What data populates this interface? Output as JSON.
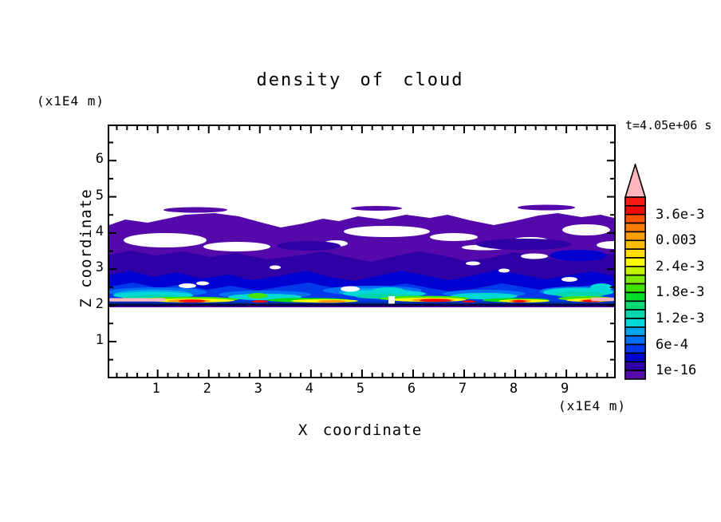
{
  "title": "density of cloud",
  "timestamp": "t=4.05e+06 s",
  "axes": {
    "x": {
      "label": "X coordinate",
      "unit": "(x1E4 m)",
      "major_ticks": [
        1,
        2,
        3,
        4,
        5,
        6,
        7,
        8,
        9
      ],
      "minor_step": 0.2,
      "range": [
        0,
        9.9
      ]
    },
    "z": {
      "label": "Z coordinate",
      "unit": "(x1E4 m)",
      "major_ticks": [
        1,
        2,
        3,
        4,
        5,
        6
      ],
      "minor_step": 0.5,
      "range": [
        0,
        6.93
      ]
    }
  },
  "palette": {
    "violet": "#5509ab",
    "indigo": "#2e00a6",
    "navy": "#0000d0",
    "blue": "#0038ec",
    "blue2": "#0070f4",
    "sky": "#00a4f0",
    "cyan": "#00d8d8",
    "teal": "#00d6ae",
    "green2": "#44e400",
    "green": "#0cdc0c",
    "yellow": "#fbfb00",
    "orange": "#fe9e00",
    "red": "#f00a00",
    "pink": "#ffb6bc",
    "bottomblue": "#0030b0",
    "baseline": "#000040",
    "white": "#ffffff",
    "frame": "#000000"
  },
  "colorbar": {
    "over_color": "#ffb6bc",
    "colors_top_to_bottom": [
      "#f81b14",
      "#f00a00",
      "#fb5300",
      "#fd7d00",
      "#fe9e00",
      "#febe00",
      "#fede00",
      "#fbfb00",
      "#c2f200",
      "#7fea00",
      "#3ce200",
      "#00da28",
      "#00d870",
      "#00d6ae",
      "#00d8d8",
      "#00a4f0",
      "#0070f4",
      "#0038ec",
      "#0000d0",
      "#2e00a6",
      "#5509ab"
    ],
    "labels": [
      {
        "text": "3.6e-3",
        "boundary_index": 2
      },
      {
        "text": "0.003",
        "boundary_index": 5
      },
      {
        "text": "2.4e-3",
        "boundary_index": 8
      },
      {
        "text": "1.8e-3",
        "boundary_index": 11
      },
      {
        "text": "1.2e-3",
        "boundary_index": 14
      },
      {
        "text": "6e-4",
        "boundary_index": 17
      },
      {
        "text": "1e-16",
        "boundary_index": 20
      }
    ]
  },
  "chart_data": {
    "type": "heatmap",
    "title": "density of cloud",
    "time_annotation": "t=4.05e+06 s",
    "xlabel": "X coordinate (x1E4 m)",
    "ylabel": "Z coordinate (x1E4 m)",
    "xlim": [
      0,
      9.9
    ],
    "ylim": [
      0,
      6.93
    ],
    "grid": false,
    "legend_position": "right-colorbar",
    "level_boundaries": [
      1e-16,
      0.0002,
      0.0004,
      0.0006,
      0.0008,
      0.001,
      0.0012,
      0.0014,
      0.0016,
      0.0018,
      0.002,
      0.0022,
      0.0024,
      0.0026,
      0.0028,
      0.003,
      0.0032,
      0.0034,
      0.0036,
      0.0038,
      0.004
    ],
    "labeled_levels": [
      "1e-16",
      "6e-4",
      "1.2e-3",
      "1.8e-3",
      "2.4e-3",
      "0.003",
      "3.6e-3"
    ],
    "over_range_color_meaning": "values above 0.004 (pink triangle)",
    "field_summary": {
      "cloud_base_z": 2.0,
      "cloud_top_z": 4.45,
      "below_cloud": "zero density (white) for z < 2.0",
      "above_cloud": "zero density (white) for z > ~4.45",
      "layers": [
        {
          "z_range": [
            3.4,
            4.45
          ],
          "values": "~1e-16 to 2e-4",
          "appearance": "violet field with elongated white gaps"
        },
        {
          "z_range": [
            2.9,
            3.5
          ],
          "values": "~2e-4 to 4e-4",
          "appearance": "dark indigo band"
        },
        {
          "z_range": [
            2.5,
            3.0
          ],
          "values": "~4e-4 to 1.2e-3",
          "appearance": "navy and blue patches"
        },
        {
          "z_range": [
            2.2,
            2.6
          ],
          "values": "~1.2e-3 to 2e-3",
          "appearance": "sky blue and cyan streaks"
        },
        {
          "z_range": [
            2.02,
            2.3
          ],
          "values": "~2e-3 to >4e-3",
          "appearance": "thin green/yellow/orange/red streaks with pink over-range patches near x=0-1 and x=9.4-9.9"
        },
        {
          "z_range": [
            1.97,
            2.02
          ],
          "values": "sharp cloud-base line",
          "appearance": "dark horizontal line across full width"
        }
      ]
    }
  }
}
